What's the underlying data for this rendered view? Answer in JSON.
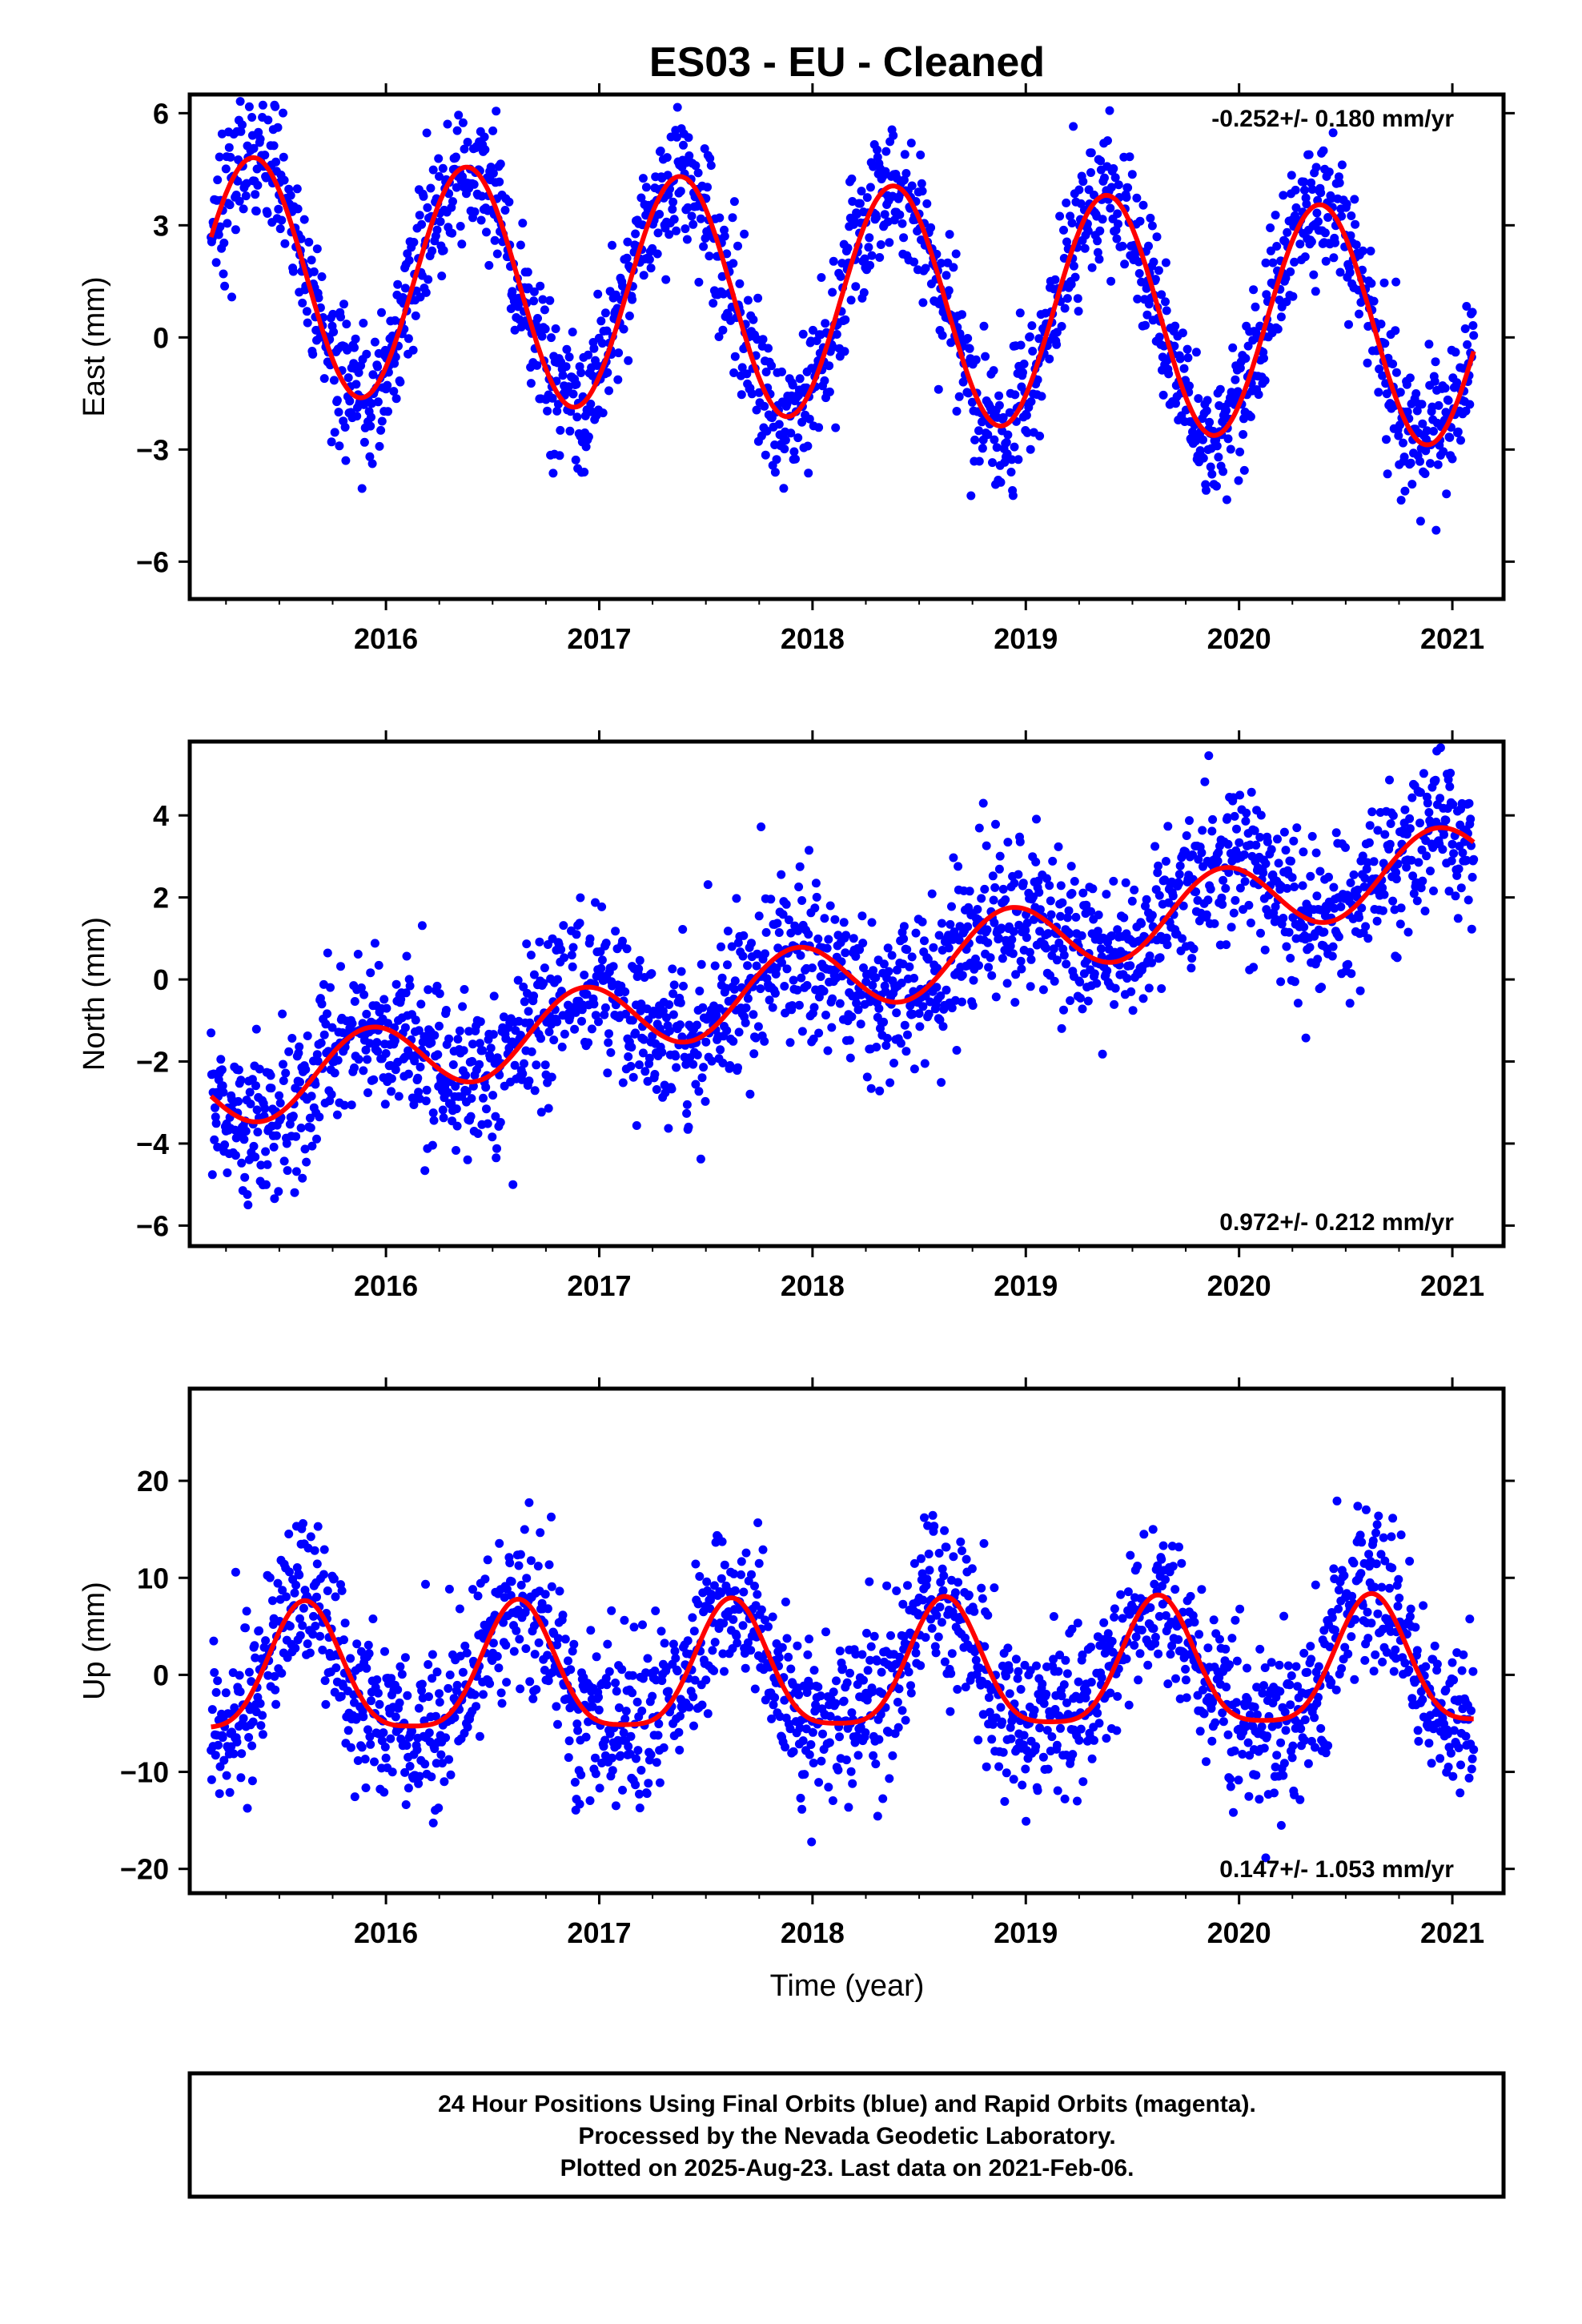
{
  "title": "ES03  - EU - Cleaned",
  "xlabel": "Time (year)",
  "colors": {
    "final_orbits": "#0000ff",
    "fit": "#ff0000",
    "axes": "#000000"
  },
  "footer": {
    "line1": "24 Hour Positions Using Final Orbits (blue) and Rapid Orbits (magenta).",
    "line2": "Processed by the Nevada Geodetic Laboratory.",
    "line3": "Plotted on 2025-Aug-23. Last data on 2021-Feb-06."
  },
  "chart_data": [
    {
      "type": "scatter",
      "name": "east",
      "ylabel": "East (mm)",
      "rate_label": "-0.252+/- 0.180 mm/yr",
      "rate_position": "top-right",
      "xlim": [
        2015.08,
        2021.24
      ],
      "ylim": [
        -7.0,
        6.5
      ],
      "xticks": [
        2016,
        2017,
        2018,
        2019,
        2020,
        2021
      ],
      "yticks": [
        -6,
        -3,
        0,
        3,
        6
      ],
      "x_start": 2015.18,
      "x_end": 2021.1,
      "fit": {
        "trend_mm_per_yr": -0.252,
        "offset": 1.0,
        "annual_amplitude": 3.15,
        "peak_phase_year": 0.38,
        "semiannual_amplitude": 0.0,
        "semiannual_phase_year": 0.0
      },
      "scatter_sigma": 0.95,
      "n_points": 1950
    },
    {
      "type": "scatter",
      "name": "north",
      "ylabel": "North (mm)",
      "rate_label": "0.972+/- 0.212 mm/yr",
      "rate_position": "bottom-right",
      "xlim": [
        2015.08,
        2021.24
      ],
      "ylim": [
        -6.5,
        5.8
      ],
      "xticks": [
        2016,
        2017,
        2018,
        2019,
        2020,
        2021
      ],
      "yticks": [
        -6,
        -4,
        -2,
        0,
        2,
        4
      ],
      "x_start": 2015.18,
      "x_end": 2021.1,
      "fit": {
        "trend_mm_per_yr": 0.972,
        "offset": -0.05,
        "annual_amplitude": 0.9,
        "peak_phase_year": 0.92,
        "semiannual_amplitude": 0.0,
        "semiannual_phase_year": 0.0
      },
      "scatter_sigma": 0.95,
      "n_points": 1950
    },
    {
      "type": "scatter",
      "name": "up",
      "ylabel": "Up (mm)",
      "rate_label": "0.147+/- 1.053 mm/yr",
      "rate_position": "bottom-right",
      "xlim": [
        2015.08,
        2021.24
      ],
      "ylim": [
        -22.5,
        29.5
      ],
      "xticks": [
        2016,
        2017,
        2018,
        2019,
        2020,
        2021
      ],
      "yticks": [
        -20,
        -10,
        0,
        10,
        20
      ],
      "x_start": 2015.18,
      "x_end": 2021.1,
      "fit": {
        "trend_mm_per_yr": 0.147,
        "offset": 0.0,
        "annual_amplitude": 6.5,
        "peak_phase_year": 0.62,
        "semiannual_amplitude": 1.5,
        "semiannual_phase_year": 0.62
      },
      "scatter_sigma": 4.2,
      "n_points": 1950
    }
  ]
}
